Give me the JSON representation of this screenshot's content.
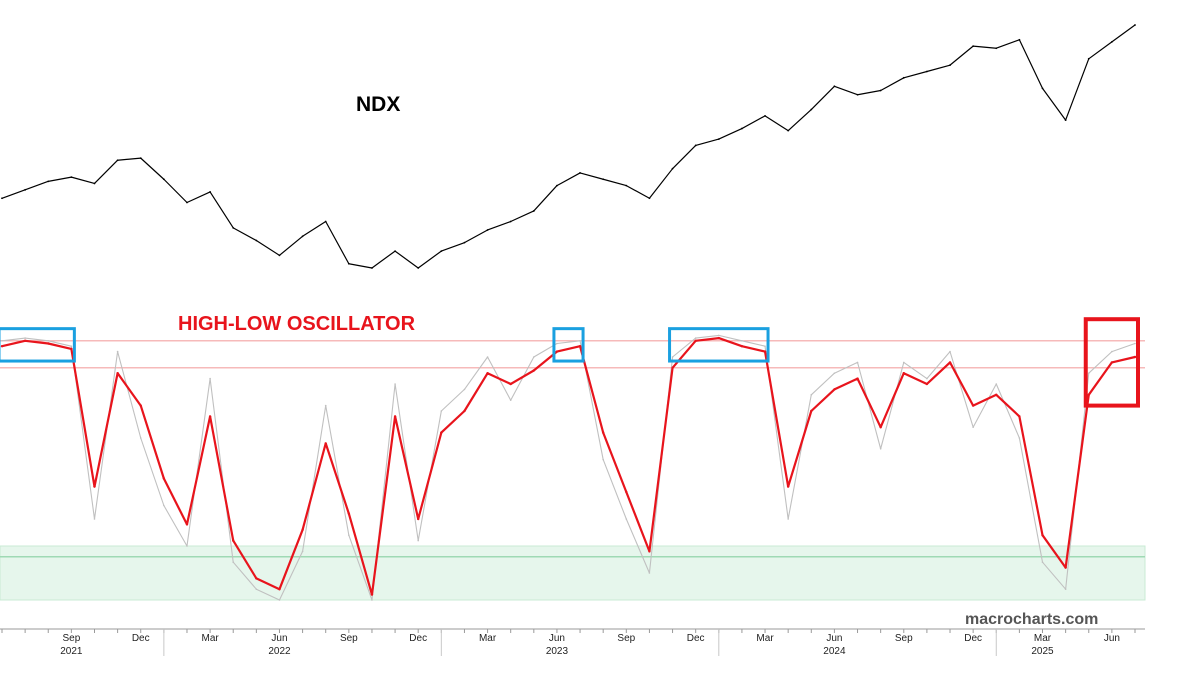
{
  "chart_data": [
    {
      "type": "line",
      "title": "NDX",
      "xlabel": "",
      "ylabel": "",
      "x_range": [
        "2021-06",
        "2025-07"
      ],
      "series": [
        {
          "name": "",
          "color": "#000000",
          "x": [
            "2021-06",
            "2021-07",
            "2021-08",
            "2021-09",
            "2021-10",
            "2021-11",
            "2021-12",
            "2022-01",
            "2022-02",
            "2022-03",
            "2022-04",
            "2022-05",
            "2022-06",
            "2022-07",
            "2022-08",
            "2022-09",
            "2022-10",
            "2022-11",
            "2022-12",
            "2023-01",
            "2023-02",
            "2023-03",
            "2023-04",
            "2023-05",
            "2023-06",
            "2023-07",
            "2023-08",
            "2023-09",
            "2023-10",
            "2023-11",
            "2023-12",
            "2024-01",
            "2024-02",
            "2024-03",
            "2024-04",
            "2024-05",
            "2024-06",
            "2024-07",
            "2024-08",
            "2024-09",
            "2024-10",
            "2024-11",
            "2024-12",
            "2025-01",
            "2025-02",
            "2025-03",
            "2025-04",
            "2025-05",
            "2025-06",
            "2025-07"
          ],
          "values": [
            14300,
            14700,
            15100,
            15300,
            15000,
            16100,
            16200,
            15200,
            14100,
            14600,
            12900,
            12300,
            11600,
            12500,
            13200,
            11200,
            11000,
            11800,
            11000,
            11800,
            12200,
            12800,
            13200,
            13700,
            14900,
            15500,
            15200,
            14900,
            14300,
            15700,
            16800,
            17100,
            17600,
            18200,
            17500,
            18500,
            19600,
            19200,
            19400,
            20000,
            20300,
            20600,
            21500,
            21400,
            21800,
            19500,
            18000,
            20900,
            21700,
            22500
          ]
        }
      ]
    },
    {
      "type": "line",
      "title": "HIGH-LOW OSCILLATOR",
      "xlabel": "",
      "ylabel": "",
      "ylim": [
        0,
        100
      ],
      "x_range": [
        "2021-06",
        "2025-07"
      ],
      "bands": [
        {
          "name": "upper",
          "color": "#f4a3a3",
          "lines": [
            96,
            86
          ]
        },
        {
          "name": "lower",
          "color": "#c9ebd4",
          "range": [
            0,
            20
          ],
          "midline": 16
        }
      ],
      "highlights": [
        {
          "color": "#1aa0e0",
          "from": "2021-06",
          "to": "2021-09"
        },
        {
          "color": "#1aa0e0",
          "from": "2023-06",
          "to": "2023-07"
        },
        {
          "color": "#1aa0e0",
          "from": "2023-11",
          "to": "2024-03"
        },
        {
          "color": "#e8141c",
          "from": "2025-05",
          "to": "2025-07"
        }
      ],
      "series": [
        {
          "name": "",
          "color": "#e8141c",
          "x": [
            "2021-06",
            "2021-07",
            "2021-08",
            "2021-09",
            "2021-10",
            "2021-11",
            "2021-12",
            "2022-01",
            "2022-02",
            "2022-03",
            "2022-04",
            "2022-05",
            "2022-06",
            "2022-07",
            "2022-08",
            "2022-09",
            "2022-10",
            "2022-11",
            "2022-12",
            "2023-01",
            "2023-02",
            "2023-03",
            "2023-04",
            "2023-05",
            "2023-06",
            "2023-07",
            "2023-08",
            "2023-09",
            "2023-10",
            "2023-11",
            "2023-12",
            "2024-01",
            "2024-02",
            "2024-03",
            "2024-04",
            "2024-05",
            "2024-06",
            "2024-07",
            "2024-08",
            "2024-09",
            "2024-10",
            "2024-11",
            "2024-12",
            "2025-01",
            "2025-02",
            "2025-03",
            "2025-04",
            "2025-05",
            "2025-06",
            "2025-07"
          ],
          "values": [
            94,
            96,
            95,
            93,
            42,
            84,
            72,
            45,
            28,
            68,
            22,
            8,
            4,
            26,
            58,
            32,
            2,
            68,
            30,
            62,
            70,
            84,
            80,
            85,
            92,
            94,
            62,
            40,
            18,
            86,
            96,
            97,
            94,
            92,
            42,
            70,
            78,
            82,
            64,
            84,
            80,
            88,
            72,
            76,
            68,
            24,
            12,
            76,
            88,
            90
          ]
        },
        {
          "name": "",
          "color": "#c0c0c0",
          "x": [
            "2021-06",
            "2021-07",
            "2021-08",
            "2021-09",
            "2021-10",
            "2021-11",
            "2021-12",
            "2022-01",
            "2022-02",
            "2022-03",
            "2022-04",
            "2022-05",
            "2022-06",
            "2022-07",
            "2022-08",
            "2022-09",
            "2022-10",
            "2022-11",
            "2022-12",
            "2023-01",
            "2023-02",
            "2023-03",
            "2023-04",
            "2023-05",
            "2023-06",
            "2023-07",
            "2023-08",
            "2023-09",
            "2023-10",
            "2023-11",
            "2023-12",
            "2024-01",
            "2024-02",
            "2024-03",
            "2024-04",
            "2024-05",
            "2024-06",
            "2024-07",
            "2024-08",
            "2024-09",
            "2024-10",
            "2024-11",
            "2024-12",
            "2025-01",
            "2025-02",
            "2025-03",
            "2025-04",
            "2025-05",
            "2025-06",
            "2025-07"
          ],
          "values": [
            96,
            97,
            96,
            94,
            30,
            92,
            60,
            35,
            20,
            82,
            14,
            4,
            0,
            18,
            72,
            24,
            0,
            80,
            22,
            70,
            78,
            90,
            74,
            90,
            95,
            96,
            52,
            30,
            10,
            90,
            97,
            98,
            96,
            94,
            30,
            76,
            84,
            88,
            56,
            88,
            82,
            92,
            64,
            80,
            60,
            14,
            4,
            84,
            92,
            95
          ]
        }
      ]
    }
  ],
  "labels": {
    "ndx": "NDX",
    "oscillator": "HIGH-LOW OSCILLATOR",
    "watermark": "macrocharts.com"
  },
  "x_axis": {
    "months": [
      {
        "label": "Sep",
        "date": "2021-09"
      },
      {
        "label": "Dec",
        "date": "2021-12"
      },
      {
        "label": "Mar",
        "date": "2022-03"
      },
      {
        "label": "Jun",
        "date": "2022-06"
      },
      {
        "label": "Sep",
        "date": "2022-09"
      },
      {
        "label": "Dec",
        "date": "2022-12"
      },
      {
        "label": "Mar",
        "date": "2023-03"
      },
      {
        "label": "Jun",
        "date": "2023-06"
      },
      {
        "label": "Sep",
        "date": "2023-09"
      },
      {
        "label": "Dec",
        "date": "2023-12"
      },
      {
        "label": "Mar",
        "date": "2024-03"
      },
      {
        "label": "Jun",
        "date": "2024-06"
      },
      {
        "label": "Sep",
        "date": "2024-09"
      },
      {
        "label": "Dec",
        "date": "2024-12"
      },
      {
        "label": "Mar",
        "date": "2025-03"
      },
      {
        "label": "Jun",
        "date": "2025-06"
      }
    ],
    "years": [
      {
        "label": "2021",
        "date": "2021-09"
      },
      {
        "label": "2022",
        "date": "2022-06"
      },
      {
        "label": "2023",
        "date": "2023-06"
      },
      {
        "label": "2024",
        "date": "2024-06"
      },
      {
        "label": "2025",
        "date": "2025-03"
      }
    ]
  }
}
